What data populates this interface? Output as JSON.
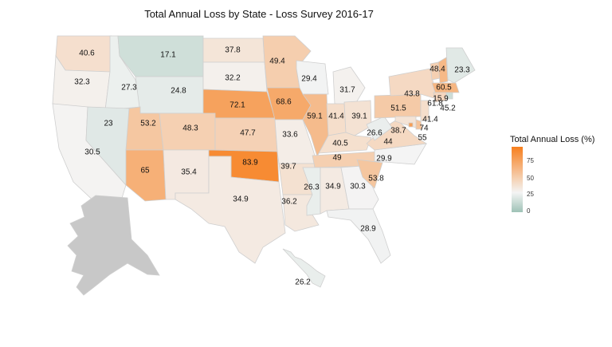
{
  "map": {
    "title": "Total Annual Loss by State - Loss Survey 2016-17",
    "legend": {
      "title": "Total Annual Loss (%)",
      "ticks": [
        "0",
        "25",
        "50",
        "75"
      ],
      "colors": {
        "low": "#9ec2b6",
        "mid": "#f4f4f4",
        "high": "#f77f1d"
      }
    },
    "states": [
      {
        "id": "WA",
        "value": "40.6"
      },
      {
        "id": "OR",
        "value": "32.3"
      },
      {
        "id": "CA",
        "value": "30.5"
      },
      {
        "id": "ID",
        "value": "27.3"
      },
      {
        "id": "NV",
        "value": "23"
      },
      {
        "id": "MT",
        "value": "17.1"
      },
      {
        "id": "WY",
        "value": "24.8"
      },
      {
        "id": "UT",
        "value": "53.2"
      },
      {
        "id": "AZ",
        "value": "65"
      },
      {
        "id": "CO",
        "value": "48.3"
      },
      {
        "id": "NM",
        "value": "35.4"
      },
      {
        "id": "ND",
        "value": "37.8"
      },
      {
        "id": "SD",
        "value": "32.2"
      },
      {
        "id": "NE",
        "value": "72.1"
      },
      {
        "id": "KS",
        "value": "47.7"
      },
      {
        "id": "OK",
        "value": "83.9"
      },
      {
        "id": "TX",
        "value": "34.9"
      },
      {
        "id": "MN",
        "value": "49.4"
      },
      {
        "id": "IA",
        "value": "68.6"
      },
      {
        "id": "MO",
        "value": "33.6"
      },
      {
        "id": "AR",
        "value": "39.7"
      },
      {
        "id": "LA",
        "value": "36.2"
      },
      {
        "id": "WI",
        "value": "29.4"
      },
      {
        "id": "IL",
        "value": "59.1"
      },
      {
        "id": "MI",
        "value": "31.7"
      },
      {
        "id": "IN",
        "value": "41.4"
      },
      {
        "id": "OH",
        "value": "39.1"
      },
      {
        "id": "KY",
        "value": "40.5"
      },
      {
        "id": "TN",
        "value": "49"
      },
      {
        "id": "MS",
        "value": "26.3"
      },
      {
        "id": "AL",
        "value": "34.9"
      },
      {
        "id": "GA",
        "value": "30.3"
      },
      {
        "id": "FL",
        "value": "28.9"
      },
      {
        "id": "SC",
        "value": "53.8"
      },
      {
        "id": "NC",
        "value": "29.9"
      },
      {
        "id": "VA",
        "value": "44"
      },
      {
        "id": "WV",
        "value": "26.6"
      },
      {
        "id": "PA",
        "value": "51.5"
      },
      {
        "id": "NY",
        "value": "43.8"
      },
      {
        "id": "VT",
        "value": "48.4"
      },
      {
        "id": "NH",
        "value": "60.5"
      },
      {
        "id": "ME",
        "value": "23.3"
      },
      {
        "id": "MA",
        "value": "61.8"
      },
      {
        "id": "RI",
        "value": "15.9"
      },
      {
        "id": "CT",
        "value": "45.2"
      },
      {
        "id": "NJ",
        "value": "41.4"
      },
      {
        "id": "DE",
        "value": "55"
      },
      {
        "id": "MD",
        "value": "38.7"
      },
      {
        "id": "DC",
        "value": "74"
      },
      {
        "id": "HI",
        "value": "26.2"
      },
      {
        "id": "AK",
        "value": ""
      }
    ]
  }
}
